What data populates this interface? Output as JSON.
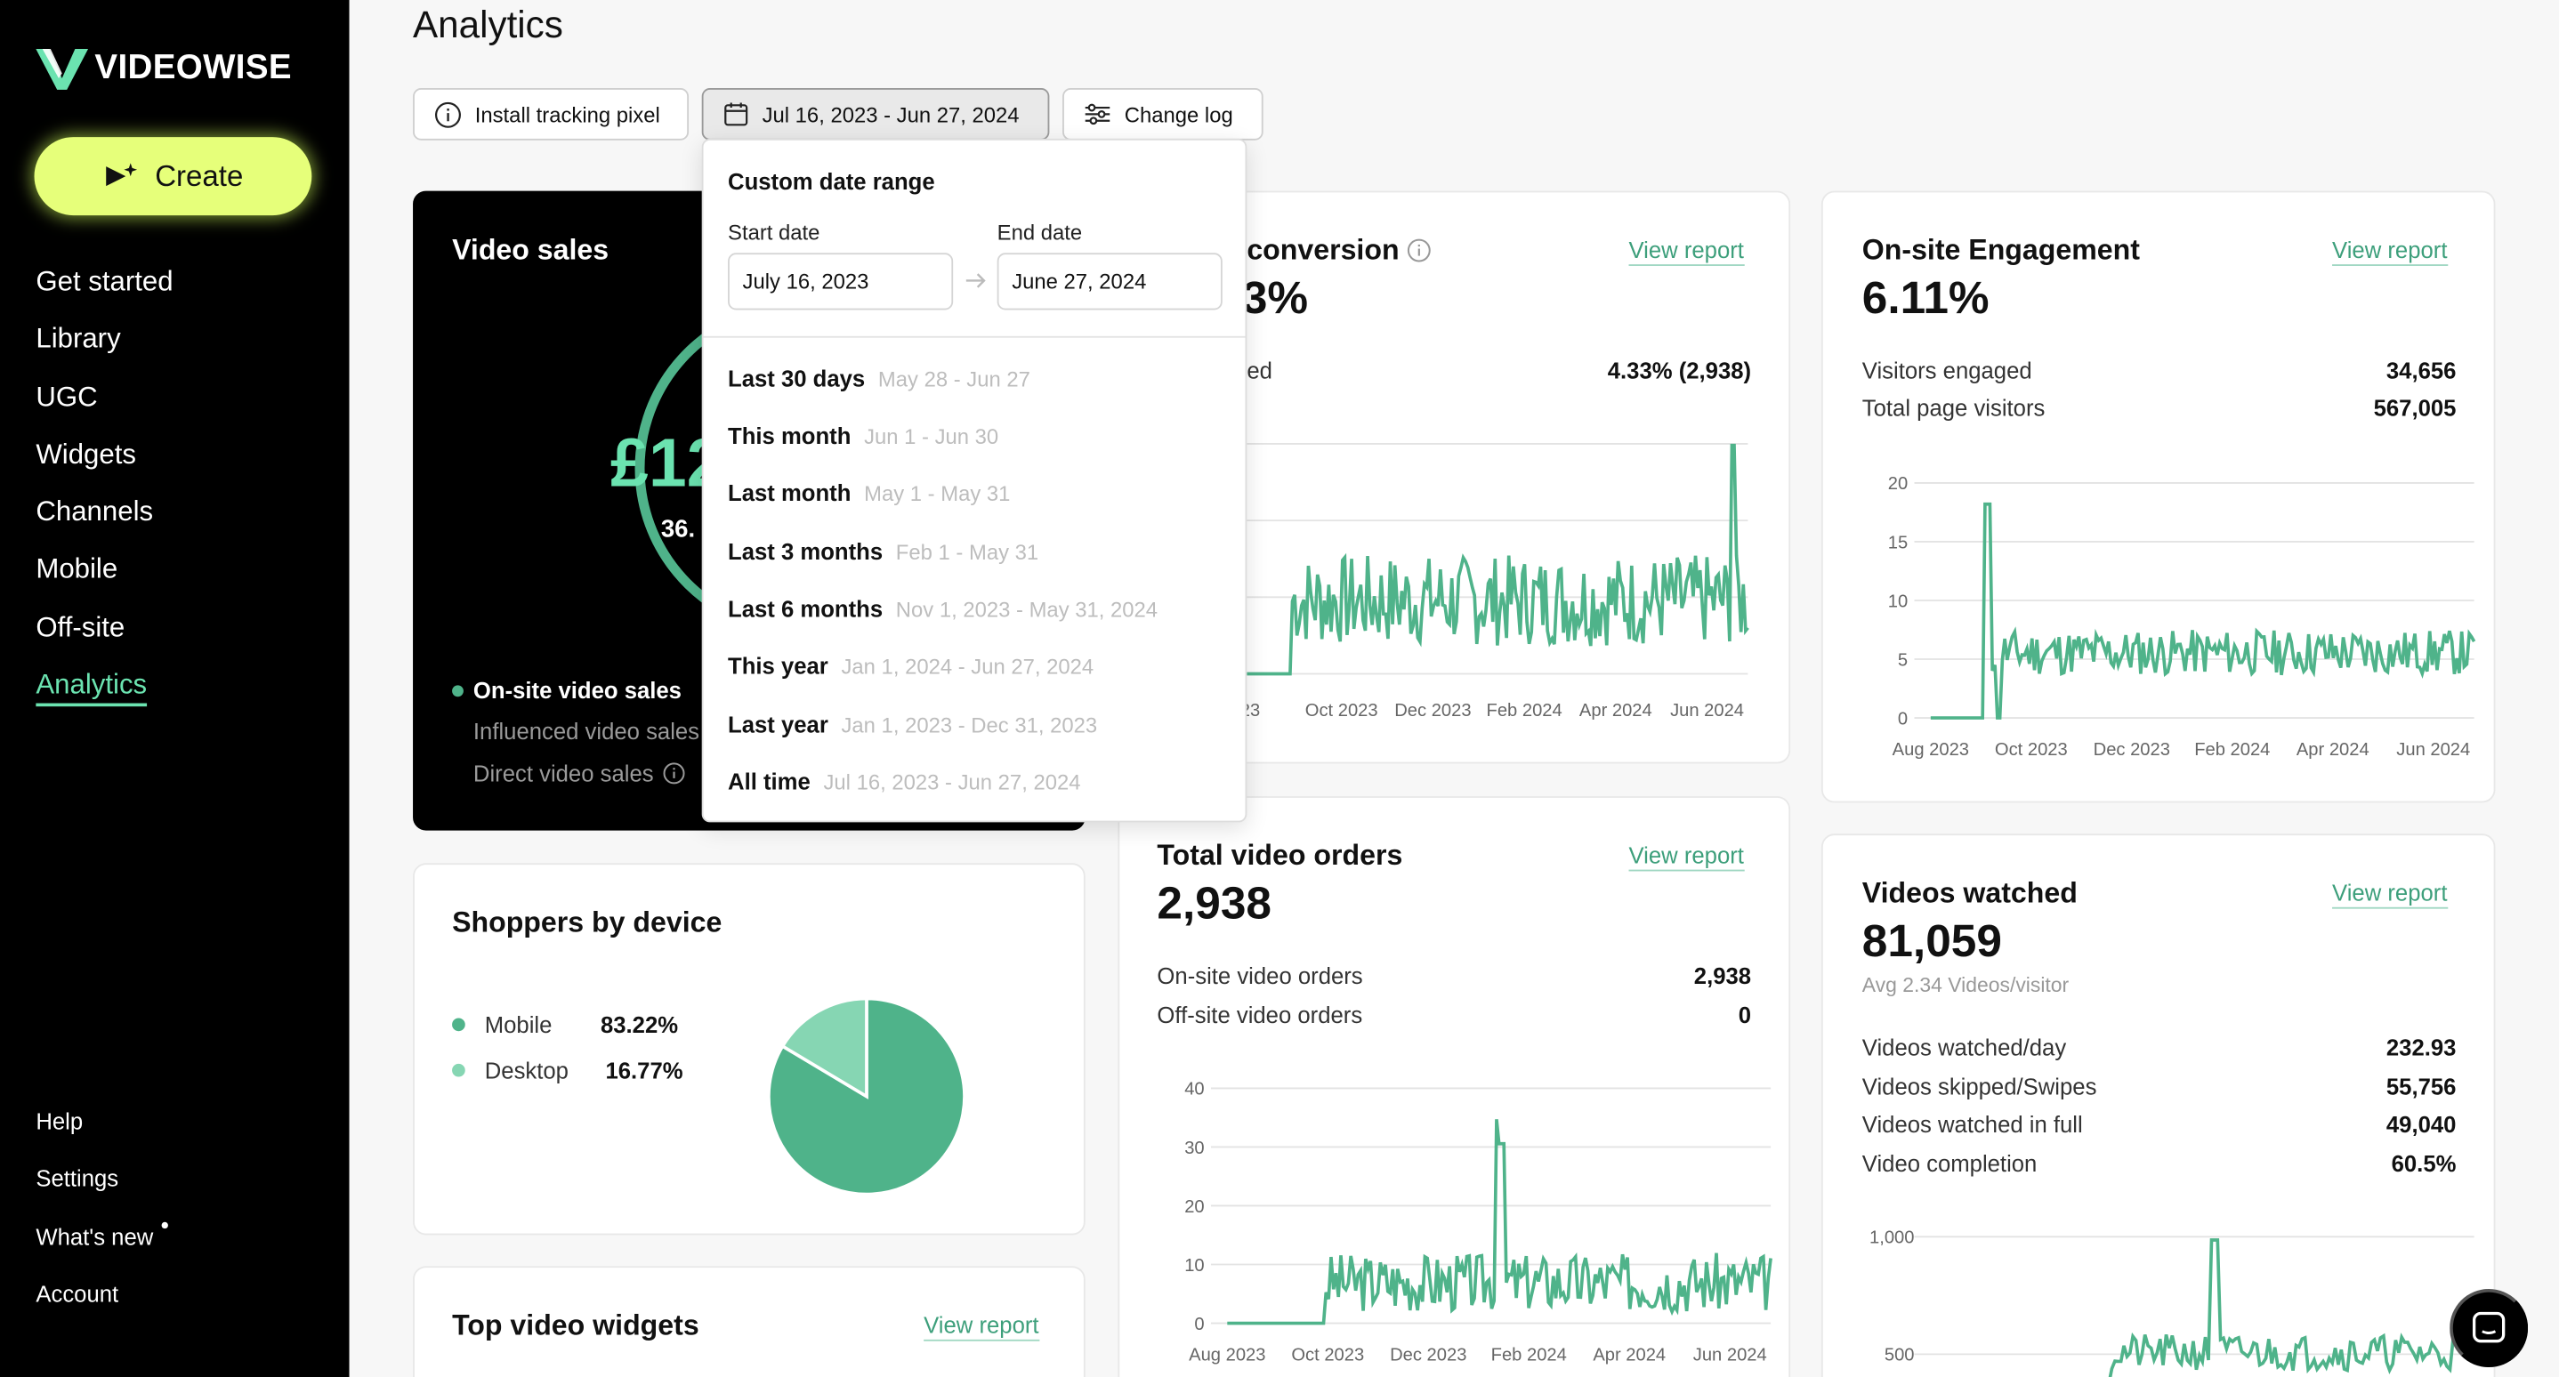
{
  "sidebar": {
    "logo_text": "VIDEOWISE",
    "create_label": "Create",
    "items": [
      {
        "label": "Get started"
      },
      {
        "label": "Library"
      },
      {
        "label": "UGC"
      },
      {
        "label": "Widgets"
      },
      {
        "label": "Channels"
      },
      {
        "label": "Mobile"
      },
      {
        "label": "Off-site"
      },
      {
        "label": "Analytics"
      }
    ],
    "bottom_items": [
      {
        "label": "Help"
      },
      {
        "label": "Settings"
      },
      {
        "label": "What's new"
      },
      {
        "label": "Account"
      }
    ]
  },
  "header": {
    "title": "Analytics",
    "install_pixel": "Install tracking pixel",
    "date_range": "Jul 16, 2023 - Jun 27, 2024",
    "change_log": "Change log"
  },
  "date_dropdown": {
    "title": "Custom date range",
    "start_label": "Start date",
    "end_label": "End date",
    "start_value": "July 16, 2023",
    "end_value": "June 27, 2024",
    "presets": [
      {
        "label": "Last 30 days",
        "range": "May 28 - Jun 27"
      },
      {
        "label": "This month",
        "range": "Jun 1 - Jun 30"
      },
      {
        "label": "Last month",
        "range": "May 1 - May 31"
      },
      {
        "label": "Last 3 months",
        "range": "Feb 1 - May 31"
      },
      {
        "label": "Last 6 months",
        "range": "Nov 1, 2023 - May 31, 2024"
      },
      {
        "label": "This year",
        "range": "Jan 1, 2024 - Jun 27, 2024"
      },
      {
        "label": "Last year",
        "range": "Jan 1, 2023 - Dec 31, 2023"
      },
      {
        "label": "All time",
        "range": "Jul 16, 2023 - Jun 27, 2024"
      }
    ]
  },
  "video_sales": {
    "title": "Video sales",
    "value_partial": "£12",
    "pct_partial": "36.",
    "legend": [
      {
        "label": "On-site video sales"
      },
      {
        "label": "Influenced video sales"
      },
      {
        "label": "Direct video sales"
      }
    ]
  },
  "conversion": {
    "title": "conversion",
    "value_partial": "3%",
    "row_label_partial": "ed",
    "row_value": "4.33% (2,938)",
    "view_report": "View report",
    "x_ticks": [
      "23",
      "Oct 2023",
      "Dec 2023",
      "Feb 2024",
      "Apr 2024",
      "Jun 2024"
    ]
  },
  "engagement": {
    "title": "On-site Engagement",
    "value": "6.11%",
    "view_report": "View report",
    "rows": [
      {
        "label": "Visitors engaged",
        "value": "34,656"
      },
      {
        "label": "Total page visitors",
        "value": "567,005"
      }
    ],
    "y_ticks": [
      "20",
      "15",
      "10",
      "5",
      "0"
    ],
    "x_ticks": [
      "Aug 2023",
      "Oct 2023",
      "Dec 2023",
      "Feb 2024",
      "Apr 2024",
      "Jun 2024"
    ]
  },
  "shoppers": {
    "title": "Shoppers by device",
    "items": [
      {
        "label": "Mobile",
        "value": "83.22%",
        "color": "#4fb38a"
      },
      {
        "label": "Desktop",
        "value": "16.77%",
        "color": "#86d6b3"
      }
    ]
  },
  "orders": {
    "title": "Total video orders",
    "value": "2,938",
    "view_report": "View report",
    "rows": [
      {
        "label": "On-site video orders",
        "value": "2,938"
      },
      {
        "label": "Off-site video orders",
        "value": "0"
      }
    ],
    "y_ticks": [
      "40",
      "30",
      "20",
      "10",
      "0"
    ],
    "x_ticks": [
      "Aug 2023",
      "Oct 2023",
      "Dec 2023",
      "Feb 2024",
      "Apr 2024",
      "Jun 2024"
    ]
  },
  "watched": {
    "title": "Videos watched",
    "value": "81,059",
    "subtitle": "Avg 2.34 Videos/visitor",
    "view_report": "View report",
    "rows": [
      {
        "label": "Videos watched/day",
        "value": "232.93"
      },
      {
        "label": "Videos skipped/Swipes",
        "value": "55,756"
      },
      {
        "label": "Videos watched in full",
        "value": "49,040"
      },
      {
        "label": "Video completion",
        "value": "60.5%"
      }
    ],
    "y_ticks": [
      "1,000",
      "500"
    ]
  },
  "widgets": {
    "title": "Top video widgets",
    "view_report": "View report"
  },
  "colors": {
    "accent": "#4fb38a",
    "create_bg": "#e6ff7a",
    "active_nav": "#6be3b0"
  }
}
